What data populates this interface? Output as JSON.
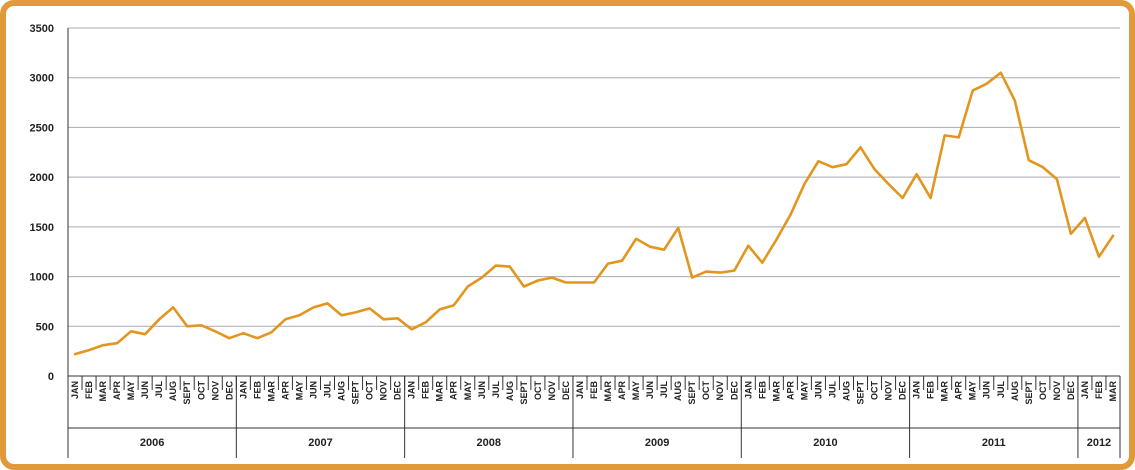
{
  "colors": {
    "frame": "#e09a3a",
    "line": "#e3961f",
    "grid": "#a9a9b3",
    "axis": "#333333"
  },
  "chart_data": {
    "type": "line",
    "title": "",
    "xlabel": "",
    "ylabel": "",
    "ylim": [
      0,
      3500
    ],
    "yticks": [
      "0",
      "500",
      "1000",
      "1500",
      "2000",
      "2500",
      "3000",
      "3500"
    ],
    "grid": true,
    "legend": "none",
    "months": [
      "JAN",
      "FEB",
      "MAR",
      "APR",
      "MAY",
      "JUN",
      "JUL",
      "AUG",
      "SEPT",
      "OCT",
      "NOV",
      "DEC",
      "JAN",
      "FEB",
      "MAR",
      "APR",
      "MAY",
      "JUN",
      "JUL",
      "AUG",
      "SEPT",
      "OCT",
      "NOV",
      "DEC",
      "JAN",
      "FEB",
      "MAR",
      "APR",
      "MAY",
      "JUN",
      "JUL",
      "AUG",
      "SEPT",
      "OCT",
      "NOV",
      "DEC",
      "JAN",
      "FEB",
      "MAR",
      "APR",
      "MAY",
      "JUN",
      "JUL",
      "AUG",
      "SEPT",
      "OCT",
      "NOV",
      "DEC",
      "JAN",
      "FEB",
      "MAR",
      "APR",
      "MAY",
      "JUN",
      "JUL",
      "AUG",
      "SEPT",
      "OCT",
      "NOV",
      "DEC",
      "JAN",
      "FEB",
      "MAR",
      "APR",
      "MAY",
      "JUN",
      "JUL",
      "AUG",
      "SEPT",
      "OCT",
      "NOV",
      "DEC",
      "JAN",
      "FEB",
      "MAR"
    ],
    "years": [
      {
        "label": "2006",
        "months": 12
      },
      {
        "label": "2007",
        "months": 12
      },
      {
        "label": "2008",
        "months": 12
      },
      {
        "label": "2009",
        "months": 12
      },
      {
        "label": "2010",
        "months": 12
      },
      {
        "label": "2011",
        "months": 12
      },
      {
        "label": "2012",
        "months": 3
      }
    ],
    "series": [
      {
        "values": [
          220,
          260,
          310,
          330,
          450,
          420,
          570,
          690,
          500,
          510,
          450,
          380,
          430,
          380,
          440,
          570,
          610,
          690,
          730,
          610,
          640,
          680,
          570,
          580,
          470,
          540,
          670,
          710,
          900,
          990,
          1110,
          1100,
          900,
          960,
          990,
          940,
          940,
          940,
          1130,
          1160,
          1380,
          1300,
          1270,
          1490,
          990,
          1050,
          1040,
          1060,
          1310,
          1140,
          1370,
          1620,
          1930,
          2160,
          2100,
          2130,
          2300,
          2080,
          1930,
          1790,
          2030,
          1790,
          2420,
          2400,
          2870,
          2940,
          3050,
          2770,
          2170,
          2100,
          1980,
          1430,
          1590,
          1200,
          1410
        ]
      }
    ]
  }
}
